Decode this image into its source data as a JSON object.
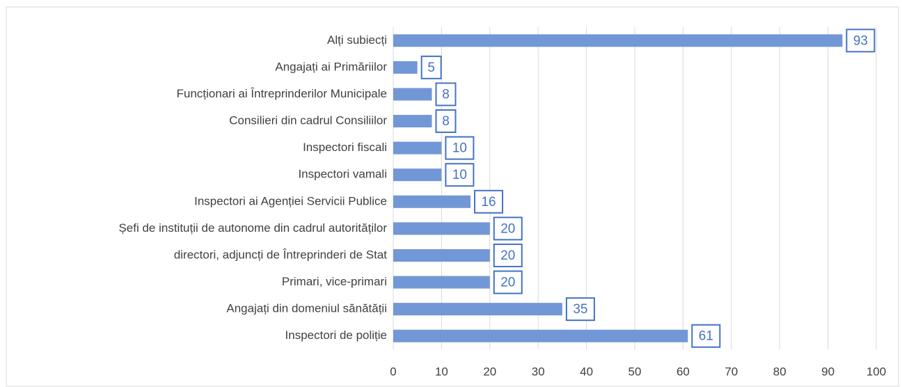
{
  "chart_data": {
    "type": "bar",
    "orientation": "horizontal",
    "categories": [
      "Alți subiecți",
      "Angajați ai Primăriilor",
      "Funcționari ai Întreprinderilor Municipale",
      "Consilieri din cadrul Consiliilor",
      "Inspectori fiscali",
      "Inspectori vamali",
      "Inspectori ai Agenției Servicii Publice",
      "Șefi de instituții de autonome din cadrul autorităților",
      "directori, adjuncți de Întreprinderi de Stat",
      "Primari, vice-primari",
      "Angajați din domeniul sănătății",
      "Inspectori de poliție"
    ],
    "values": [
      93,
      5,
      8,
      8,
      10,
      10,
      16,
      20,
      20,
      20,
      35,
      61
    ],
    "color": "#7297d6",
    "xlim": [
      0,
      100
    ],
    "xticks": [
      0,
      10,
      20,
      30,
      40,
      50,
      60,
      70,
      80,
      90,
      100
    ],
    "grid": true
  }
}
